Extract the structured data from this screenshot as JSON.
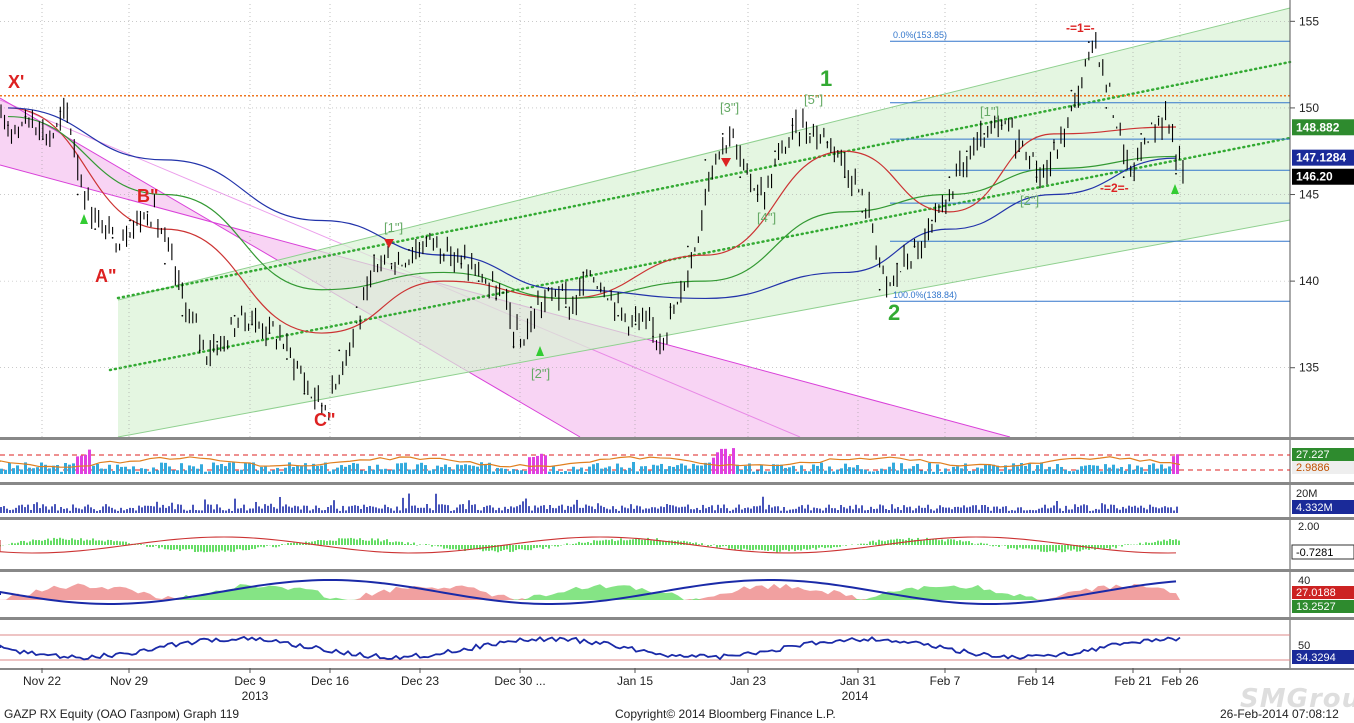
{
  "footer": {
    "left": "GAZP RX Equity (ОАО Газпром) Graph 119",
    "center": "Copyright© 2014 Bloomberg Finance L.P.",
    "right": "26-Feb-2014 07:08:12"
  },
  "watermark": "SMGroup",
  "colors": {
    "background": "#ffffff",
    "price": "#000000",
    "ma_red": "#cc3333",
    "ma_green": "#339933",
    "ma_blue": "#2233aa",
    "channel_magenta": "#d940d9",
    "channel_green": "#8fd08f",
    "fib": "#3377cc",
    "level_orange": "#ee7722",
    "wave_red": "#dd2222",
    "wave_green": "#33aa33",
    "wave_grey_green": "#66aa66",
    "panel_divider": "#888888",
    "price_tag_green": "#2e8b2e",
    "price_tag_blue": "#1a2a99",
    "price_tag_black": "#000000",
    "volume": "#1a2aa8",
    "histogram_cyan": "#33aadd",
    "histogram_magenta": "#e040e0",
    "fill_green": "#66dd66",
    "fill_red": "#ee8888",
    "line_orange": "#e08020"
  },
  "chart_data": [
    {
      "type": "line",
      "panel": "price",
      "title": "",
      "xlabel": "",
      "ylabel": "",
      "ylim": [
        131,
        156
      ],
      "y_ticks": [
        135,
        140,
        145,
        150,
        155
      ],
      "x_ticks": [
        "Nov 22",
        "Nov 29",
        "Dec 9",
        "Dec 16",
        "Dec 23",
        "Dec 30 ...",
        "Jan 15",
        "Jan 23",
        "Jan 31",
        "Feb 7",
        "Feb 14",
        "Feb 21",
        "Feb 26"
      ],
      "x_periods": [
        "2013",
        "2014"
      ],
      "grid": true,
      "series": [
        {
          "role": "close",
          "x": [
            "Nov 19",
            "Nov 20",
            "Nov 21",
            "Nov 22",
            "Nov 25",
            "Nov 26",
            "Nov 27",
            "Nov 28",
            "Nov 29",
            "Dec 2",
            "Dec 3",
            "Dec 4",
            "Dec 5",
            "Dec 6",
            "Dec 9",
            "Dec 10",
            "Dec 11",
            "Dec 12",
            "Dec 13",
            "Dec 16",
            "Dec 17",
            "Dec 18",
            "Dec 19",
            "Dec 20",
            "Dec 23",
            "Dec 24",
            "Dec 25",
            "Dec 26",
            "Dec 27",
            "Dec 30",
            "Jan 3",
            "Jan 6",
            "Jan 8",
            "Jan 9",
            "Jan 10",
            "Jan 13",
            "Jan 14",
            "Jan 15",
            "Jan 16",
            "Jan 17",
            "Jan 20",
            "Jan 21",
            "Jan 22",
            "Jan 23",
            "Jan 24",
            "Jan 27",
            "Jan 28",
            "Jan 29",
            "Jan 30",
            "Jan 31",
            "Feb 3",
            "Feb 4",
            "Feb 5",
            "Feb 6",
            "Feb 7",
            "Feb 10",
            "Feb 11",
            "Feb 12",
            "Feb 13",
            "Feb 14",
            "Feb 17",
            "Feb 18",
            "Feb 19",
            "Feb 20",
            "Feb 21",
            "Feb 24",
            "Feb 25",
            "Feb 26"
          ],
          "values": [
            149.0,
            149.5,
            148.2,
            149.8,
            145.0,
            143.0,
            142.5,
            143.5,
            144.0,
            141.0,
            138.0,
            136.0,
            136.5,
            138.0,
            137.5,
            137.0,
            135.5,
            133.5,
            132.8,
            136.0,
            138.5,
            141.5,
            141.0,
            141.8,
            142.5,
            141.5,
            141.0,
            140.0,
            139.0,
            136.2,
            138.5,
            139.5,
            138.5,
            140.5,
            139.5,
            138.0,
            137.5,
            136.8,
            138.5,
            142.0,
            147.0,
            148.5,
            146.0,
            145.0,
            147.5,
            149.0,
            148.5,
            148.0,
            146.0,
            144.0,
            139.5,
            141.0,
            142.0,
            143.5,
            146.0,
            147.5,
            148.5,
            149.0,
            147.5,
            146.0,
            148.0,
            151.0,
            153.8,
            150.0,
            146.0,
            148.5,
            149.5,
            146.2
          ]
        },
        {
          "role": "moving_average",
          "color": "#cc3333",
          "x": [
            "Nov 19",
            "Dec 2",
            "Dec 13",
            "Dec 24",
            "Jan 8",
            "Jan 20",
            "Jan 30",
            "Feb 7",
            "Feb 17",
            "Feb 26"
          ],
          "values": [
            150.0,
            143.0,
            137.0,
            140.0,
            139.0,
            141.5,
            147.5,
            144.0,
            148.5,
            148.9
          ]
        },
        {
          "role": "moving_average",
          "color": "#339933",
          "x": [
            "Nov 19",
            "Dec 2",
            "Dec 13",
            "Dec 24",
            "Jan 8",
            "Jan 20",
            "Jan 30",
            "Feb 7",
            "Feb 17",
            "Feb 26"
          ],
          "values": [
            149.5,
            145.0,
            139.5,
            140.5,
            139.0,
            140.0,
            144.0,
            145.0,
            146.5,
            147.2
          ]
        },
        {
          "role": "moving_average",
          "color": "#2233aa",
          "x": [
            "Nov 19",
            "Dec 2",
            "Dec 13",
            "Dec 24",
            "Jan 8",
            "Jan 20",
            "Jan 30",
            "Feb 7",
            "Feb 17",
            "Feb 26"
          ],
          "values": [
            150.0,
            147.0,
            143.5,
            141.5,
            139.5,
            139.0,
            140.5,
            143.0,
            145.0,
            147.1
          ]
        }
      ],
      "price_tags": [
        "148.882",
        "147.1284",
        "146.20"
      ],
      "fib_labels": [
        "0.0%(153.85)",
        "100.0%(138.84)"
      ],
      "fib_levels": [
        153.85,
        150.3,
        148.2,
        146.4,
        144.5,
        142.3,
        138.84
      ],
      "horizontal_level": 150.7,
      "wave_labels": {
        "red": [
          "X'",
          "A\"",
          "B\"",
          "C\"",
          "-=1=-",
          "-=2=-"
        ],
        "green_big": [
          "1",
          "2"
        ],
        "green_small": [
          "[1\"]",
          "[2\"]",
          "[3\"]",
          "[4\"]",
          "[5\"]",
          "[1\"]",
          "[2\"]"
        ]
      }
    },
    {
      "type": "area",
      "panel": "indicator-1",
      "y_tags": [
        "27.227",
        "2.9886"
      ],
      "description_series": "histogram + two lines"
    },
    {
      "type": "bar",
      "panel": "volume",
      "y_ticks": [
        "20M"
      ],
      "y_tags": [
        "4.332M"
      ]
    },
    {
      "type": "line",
      "panel": "indicator-3",
      "y_ticks": [
        "2.00"
      ],
      "y_tags": [
        "-0.7281"
      ]
    },
    {
      "type": "area",
      "panel": "indicator-4",
      "y_ticks": [
        "40"
      ],
      "y_tags": [
        "27.0188",
        "13.2527"
      ]
    },
    {
      "type": "line",
      "panel": "indicator-5",
      "y_ticks": [
        "50"
      ],
      "y_tags": [
        "34.3294"
      ]
    }
  ]
}
